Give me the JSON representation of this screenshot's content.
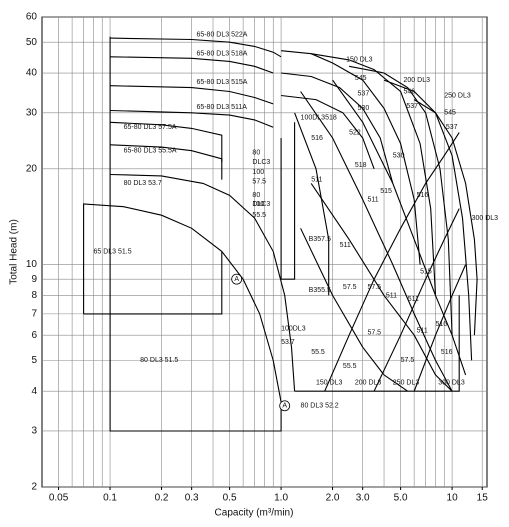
{
  "chart_data": {
    "type": "line",
    "xlabel": "Capacity (m³/min)",
    "ylabel": "Total Head (m)",
    "log_x": true,
    "log_y": true,
    "grid": true,
    "color": "#000000",
    "xlim": [
      0.04,
      16
    ],
    "ylim": [
      2,
      60
    ],
    "xticks": [
      0.05,
      0.1,
      0.2,
      0.3,
      0.5,
      {
        "value": 1,
        "label": "1.0"
      },
      {
        "value": 2,
        "label": "2.0"
      },
      {
        "value": 3,
        "label": "3.0"
      },
      {
        "value": 5,
        "label": "5.0"
      },
      10,
      15
    ],
    "xgrid": [
      0.05,
      0.06,
      0.07,
      0.08,
      0.09,
      0.1,
      0.2,
      0.3,
      0.4,
      0.5,
      0.6,
      0.7,
      0.8,
      0.9,
      1,
      2,
      3,
      4,
      5,
      6,
      7,
      8,
      9,
      10,
      15
    ],
    "yticks": [
      2,
      3,
      4,
      5,
      6,
      7,
      8,
      9,
      10,
      20,
      30,
      40,
      50,
      60
    ],
    "series": [
      {
        "x": [
          0.1,
          0.3,
          0.5,
          0.7,
          0.9,
          1.0
        ],
        "values": [
          51.5,
          51,
          50,
          48.5,
          46.5,
          45
        ]
      },
      {
        "x": [
          0.1,
          0.3,
          0.5,
          0.7,
          0.9
        ],
        "values": [
          45,
          44.5,
          43.5,
          42,
          40
        ]
      },
      {
        "x": [
          0.1,
          0.3,
          0.5,
          0.7,
          0.9
        ],
        "values": [
          36.5,
          36,
          35,
          33.5,
          32
        ]
      },
      {
        "x": [
          0.1,
          0.3,
          0.5,
          0.7,
          0.9
        ],
        "values": [
          30.5,
          30,
          29.5,
          28.5,
          27
        ]
      },
      {
        "x": [
          0.1,
          0.2,
          0.3,
          0.45,
          0.45
        ],
        "values": [
          28,
          27.5,
          26.8,
          25.5,
          21
        ]
      },
      {
        "x": [
          0.1,
          0.2,
          0.3,
          0.45,
          0.45
        ],
        "values": [
          23.8,
          23.4,
          22.8,
          21.5,
          18.5
        ]
      },
      {
        "x": [
          0.1,
          0.2,
          0.35,
          0.5,
          0.7,
          0.9,
          1.05,
          1.15,
          1.2
        ],
        "values": [
          19.2,
          19,
          18,
          16.5,
          14,
          11,
          8,
          5.5,
          4
        ]
      },
      {
        "x": [
          0.07,
          0.07,
          0.12,
          0.2,
          0.3,
          0.45,
          0.45,
          0.07
        ],
        "values": [
          7,
          15.5,
          15.2,
          14.3,
          13,
          11,
          7,
          7
        ]
      },
      {
        "x": [
          0.45,
          0.6,
          0.75,
          0.9,
          1.0,
          1.0,
          0.1,
          0.1
        ],
        "values": [
          11,
          9,
          7,
          5,
          3.7,
          3,
          3,
          52
        ]
      },
      {
        "x": [
          1.0,
          1.0,
          1.2,
          1.2
        ],
        "values": [
          25,
          9,
          9,
          28
        ]
      },
      {
        "x": [
          1.2,
          1.6,
          1.9,
          1.9
        ],
        "values": [
          30,
          20,
          12,
          8
        ]
      },
      {
        "x": [
          1.0,
          1.5,
          2,
          3,
          4,
          5,
          6,
          6.5
        ],
        "values": [
          47,
          46,
          43,
          38,
          31,
          24,
          16,
          10
        ]
      },
      {
        "x": [
          1.5,
          2.5,
          3.5,
          5,
          6.5,
          7.5,
          8
        ],
        "values": [
          46,
          44,
          41,
          35,
          24,
          15,
          8
        ]
      },
      {
        "x": [
          2.5,
          4,
          5.5,
          7,
          8.5,
          9.5,
          10
        ],
        "values": [
          42,
          40,
          36,
          30,
          20,
          12,
          6
        ]
      },
      {
        "x": [
          4,
          6,
          8,
          10,
          11.5,
          12.5,
          13
        ],
        "values": [
          38,
          35,
          30,
          22,
          14,
          8,
          5
        ]
      },
      {
        "x": [
          6,
          8,
          10,
          12,
          13.5,
          14,
          13.5
        ],
        "values": [
          33,
          30,
          25,
          18,
          12,
          9,
          6
        ]
      },
      {
        "x": [
          1.0,
          1.5,
          2.2,
          3,
          3.8,
          4.5
        ],
        "values": [
          40,
          39,
          36,
          31,
          25,
          18
        ]
      },
      {
        "x": [
          1.0,
          1.6,
          2.3,
          3,
          3.5
        ],
        "values": [
          34,
          33,
          30,
          25,
          20
        ]
      },
      {
        "x": [
          1.3,
          2,
          3,
          4.5,
          6,
          8,
          10
        ],
        "values": [
          35,
          25,
          16,
          10,
          7,
          5,
          4
        ]
      },
      {
        "x": [
          2,
          3,
          4.5,
          6,
          8,
          10,
          12
        ],
        "values": [
          38,
          28,
          18,
          12,
          8,
          6,
          4.5
        ]
      },
      {
        "x": [
          1.5,
          2.5,
          4,
          6,
          8,
          10
        ],
        "values": [
          18,
          12,
          8,
          6,
          4.5,
          4
        ]
      },
      {
        "x": [
          1.3,
          2,
          3,
          4,
          5.5
        ],
        "values": [
          13,
          8,
          5.5,
          4.5,
          4
        ]
      },
      {
        "x": [
          1.8,
          2.5,
          3.5,
          5,
          7,
          9,
          11
        ],
        "values": [
          4,
          6,
          9,
          13,
          18,
          22,
          26
        ]
      },
      {
        "x": [
          3.5,
          5,
          7,
          9,
          11
        ],
        "values": [
          4,
          6,
          9,
          12,
          15
        ]
      },
      {
        "x": [
          6,
          8,
          10,
          12
        ],
        "values": [
          4,
          6,
          8,
          10
        ]
      },
      {
        "x": [
          1.2,
          11,
          11
        ],
        "values": [
          4,
          4,
          8
        ]
      }
    ],
    "labels": [
      "65-80 DL3 522A",
      "65-80 DL3 518A",
      "65-80 DL3 515A",
      "65-80 DL3 511A",
      "65-80 DL3 57.5A",
      "65-80 DL3 55.5A",
      "80 DL3 53.7",
      "65 DL3 51.5",
      "80 DL3 51.5",
      "80",
      "DLC3",
      "100",
      "57.5",
      "80",
      "100",
      "DLC3",
      "55.5",
      "150 DL3",
      "545",
      "537",
      "530",
      "100DL3518",
      "200 DL3",
      "546",
      "537",
      "250 DL3",
      "545",
      "537",
      "300 DL3",
      "516",
      "522",
      "511",
      "518",
      "530",
      "511",
      "515",
      "516",
      "B357.5",
      "511",
      "57.5",
      "57.5",
      "511",
      "511",
      "515",
      "516",
      "B355.5",
      "100DL3",
      "53.7",
      "55.5",
      "57.5",
      "55.5",
      "57.5",
      "511",
      "516",
      "150 DL3",
      "200 DL3",
      "250 DL3",
      "300 DL3",
      "A",
      "80 DL3 52.2",
      "A"
    ]
  }
}
